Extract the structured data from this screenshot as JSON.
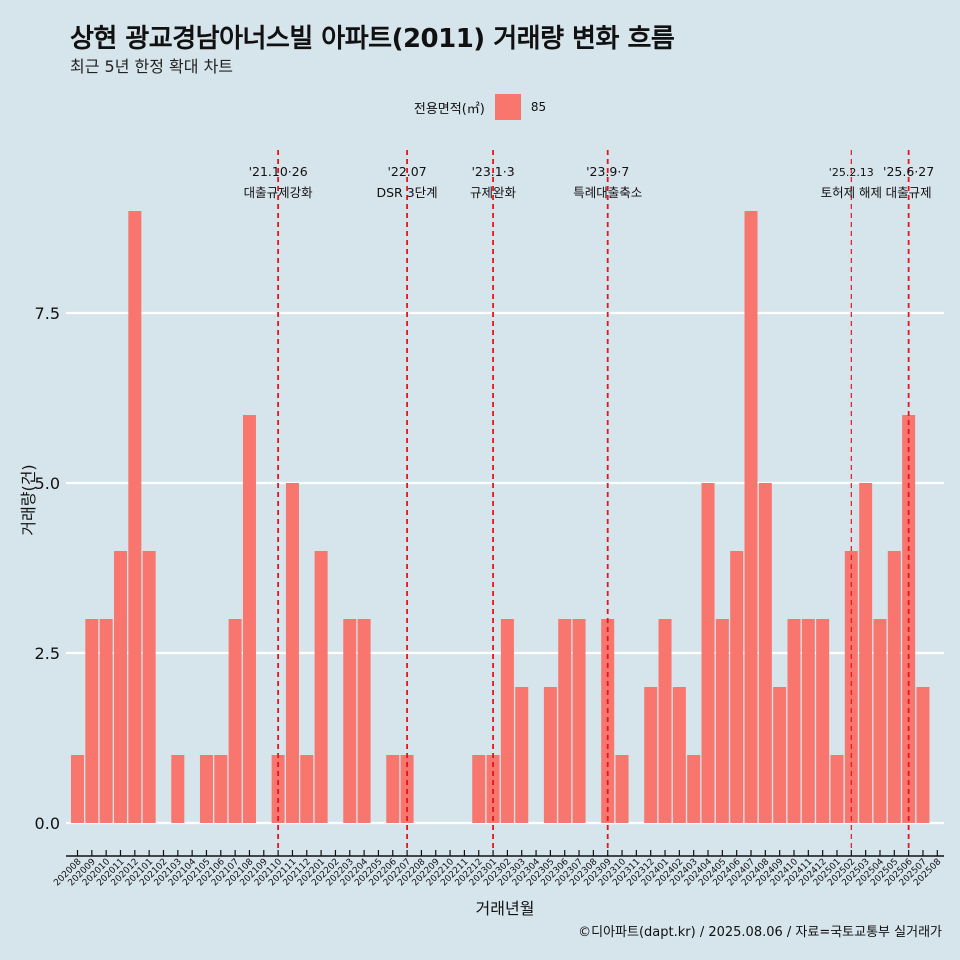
{
  "header": {
    "title": "상현 광교경남아너스빌 아파트(2011) 거래량 변화 흐름",
    "subtitle": "최근 5년 한정 확대 차트"
  },
  "legend": {
    "title": "전용면적(㎡)",
    "item": "85",
    "color": "#F8766D"
  },
  "caption": "©디아파트(dapt.kr) / 2025.08.06 / 자료=국토교통부 실거래가",
  "chart_data": {
    "type": "bar",
    "xlabel": "거래년월",
    "ylabel": "거래량(건)",
    "ylim": [
      0,
      9
    ],
    "yticks": [
      0,
      2.5,
      5,
      7.5
    ],
    "ytick_labels": [
      "0.0",
      "2.5",
      "5.0",
      "7.5"
    ],
    "grid": true,
    "bar_color": "#F8766D",
    "categories": [
      "202008",
      "202009",
      "202010",
      "202011",
      "202012",
      "202101",
      "202102",
      "202103",
      "202104",
      "202105",
      "202106",
      "202107",
      "202108",
      "202109",
      "202110",
      "202111",
      "202112",
      "202201",
      "202202",
      "202203",
      "202204",
      "202205",
      "202206",
      "202207",
      "202208",
      "202209",
      "202210",
      "202211",
      "202212",
      "202301",
      "202302",
      "202303",
      "202304",
      "202305",
      "202306",
      "202307",
      "202308",
      "202309",
      "202310",
      "202311",
      "202312",
      "202401",
      "202402",
      "202403",
      "202404",
      "202405",
      "202406",
      "202407",
      "202408",
      "202409",
      "202410",
      "202411",
      "202412",
      "202501",
      "202502",
      "202503",
      "202504",
      "202505",
      "202506",
      "202507",
      "202508"
    ],
    "values": [
      1,
      3,
      3,
      4,
      9,
      4,
      0,
      1,
      0,
      1,
      1,
      3,
      6,
      0,
      1,
      5,
      1,
      4,
      0,
      3,
      3,
      0,
      1,
      1,
      0,
      0,
      0,
      0,
      1,
      1,
      3,
      2,
      0,
      2,
      3,
      3,
      0,
      3,
      1,
      0,
      2,
      3,
      2,
      1,
      5,
      3,
      4,
      9,
      5,
      2,
      3,
      3,
      3,
      1,
      4,
      5,
      3,
      4,
      6,
      2,
      0
    ],
    "annotations": [
      {
        "x": "202110",
        "line1": "'21.10·26",
        "line2": "대출규제강화"
      },
      {
        "x": "202207",
        "line1": "'22.07",
        "line2": "DSR 3단계"
      },
      {
        "x": "202301",
        "line1": "'23.1·3",
        "line2": "규제완화"
      },
      {
        "x": "202309",
        "line1": "'23.9·7",
        "line2": "특례대출축소"
      },
      {
        "x": "202502",
        "line1": "'25.2.13",
        "line2": "토허제 해제"
      },
      {
        "x": "202506",
        "line1": "'25.6·27",
        "line2": "대출규제"
      }
    ]
  }
}
